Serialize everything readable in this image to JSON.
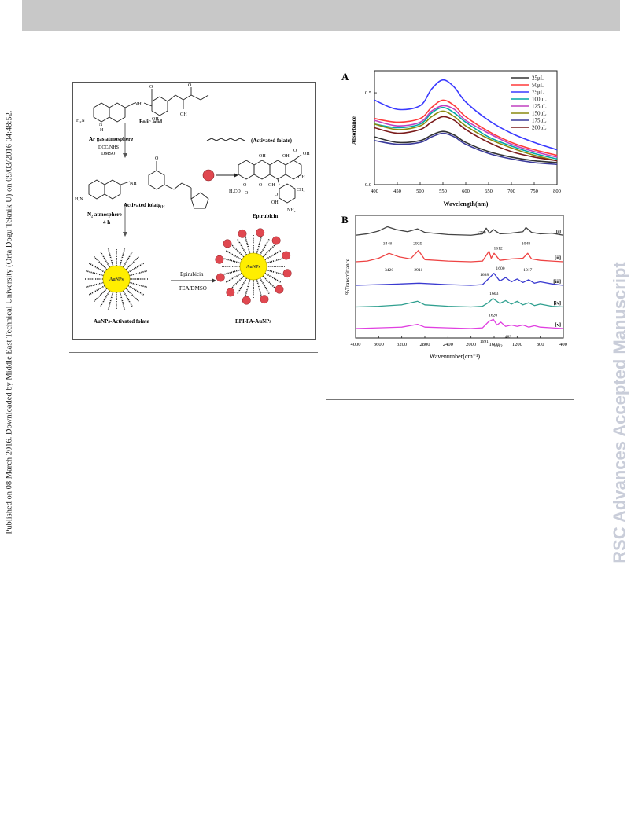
{
  "sidebar_left_text": "Published on 08 March 2016. Downloaded by Middle East Technical University (Orta Dogu Teknik U) on 09/03/2016 04:48:52.",
  "sidebar_right_text": "RSC Advances Accepted Manuscript",
  "scheme": {
    "folic_acid": "Folic acid",
    "ar_atmosphere": "Ar gas atmosphere",
    "dcc_nhs": "DCC/NHS",
    "dmso": "DMSO",
    "activated_folate": "Activated folate",
    "legend_activated": "(Activated folate)",
    "epirubicin_label": "Epirubicin",
    "n2_atmosphere": "N₂ atmosphere",
    "four_h": "4 h",
    "aunps": "AuNPs",
    "arrow_top": "Epirubicin",
    "arrow_bottom": "TEA/DMSO",
    "aunps_activated_folate": "AuNPs-Activated folate",
    "epi_fa_aunps": "EPI-FA-AuNPs",
    "atom_labels": [
      "H₂N",
      "N",
      "H",
      "NH",
      "O",
      "OH",
      "OH",
      "O",
      "NH",
      "O",
      "OH",
      "H₂N",
      "OH",
      "O",
      "O",
      "OH",
      "OH",
      "O",
      "OH",
      "H₃CO",
      "O",
      "OH",
      "O",
      "CH₃",
      "OH",
      "NH₂"
    ]
  },
  "chart_data": [
    {
      "panel_label": "A",
      "type": "line",
      "xlabel": "Wavelength(nm)",
      "ylabel": "Absorbance",
      "xlim": [
        400,
        800
      ],
      "ylim": [
        0.0,
        0.62
      ],
      "xticks": [
        400,
        450,
        500,
        550,
        600,
        650,
        700,
        750,
        800
      ],
      "yticks": [
        0.0,
        0.5
      ],
      "legend": "top-right",
      "series": [
        {
          "name": "25μL",
          "color": "#333333",
          "x": [
            400,
            450,
            500,
            525,
            550,
            575,
            600,
            650,
            700,
            750,
            800
          ],
          "y": [
            0.26,
            0.23,
            0.24,
            0.27,
            0.29,
            0.27,
            0.23,
            0.18,
            0.15,
            0.13,
            0.12
          ]
        },
        {
          "name": "50μL",
          "color": "#ff3a3a",
          "x": [
            400,
            450,
            500,
            525,
            550,
            575,
            600,
            650,
            700,
            750,
            800
          ],
          "y": [
            0.36,
            0.34,
            0.36,
            0.42,
            0.46,
            0.43,
            0.37,
            0.29,
            0.23,
            0.19,
            0.16
          ]
        },
        {
          "name": "75μL",
          "color": "#3a3aff",
          "x": [
            400,
            450,
            500,
            525,
            550,
            575,
            600,
            650,
            700,
            750,
            800
          ],
          "y": [
            0.46,
            0.41,
            0.43,
            0.52,
            0.57,
            0.53,
            0.45,
            0.35,
            0.28,
            0.23,
            0.19
          ]
        },
        {
          "name": "100μL",
          "color": "#00a7a7",
          "x": [
            400,
            450,
            500,
            525,
            550,
            575,
            600,
            650,
            700,
            750,
            800
          ],
          "y": [
            0.33,
            0.31,
            0.33,
            0.39,
            0.42,
            0.39,
            0.34,
            0.26,
            0.21,
            0.17,
            0.14
          ]
        },
        {
          "name": "125μL",
          "color": "#c040c0",
          "x": [
            400,
            450,
            500,
            525,
            550,
            575,
            600,
            650,
            700,
            750,
            800
          ],
          "y": [
            0.35,
            0.32,
            0.34,
            0.4,
            0.43,
            0.41,
            0.35,
            0.28,
            0.22,
            0.18,
            0.15
          ]
        },
        {
          "name": "150μL",
          "color": "#8a8a10",
          "x": [
            400,
            450,
            500,
            525,
            550,
            575,
            600,
            650,
            700,
            750,
            800
          ],
          "y": [
            0.33,
            0.3,
            0.32,
            0.37,
            0.4,
            0.37,
            0.32,
            0.25,
            0.2,
            0.16,
            0.13
          ]
        },
        {
          "name": "175μL",
          "color": "#3a3a9a",
          "x": [
            400,
            450,
            500,
            525,
            550,
            575,
            600,
            650,
            700,
            750,
            800
          ],
          "y": [
            0.24,
            0.22,
            0.23,
            0.26,
            0.28,
            0.26,
            0.22,
            0.17,
            0.14,
            0.12,
            0.11
          ]
        },
        {
          "name": "200μL",
          "color": "#7a1a1a",
          "x": [
            400,
            450,
            500,
            525,
            550,
            575,
            600,
            650,
            700,
            750,
            800
          ],
          "y": [
            0.31,
            0.28,
            0.3,
            0.34,
            0.37,
            0.35,
            0.3,
            0.23,
            0.18,
            0.15,
            0.13
          ]
        }
      ]
    },
    {
      "panel_label": "B",
      "type": "line",
      "xlabel": "Wavenumber(cm⁻¹)",
      "ylabel": "%Transmittance",
      "xlim": [
        4000,
        400
      ],
      "xticks": [
        4000,
        3600,
        3200,
        2800,
        2400,
        2000,
        1600,
        1200,
        800,
        400
      ],
      "series": [
        {
          "name": "[i]",
          "color": "#444444",
          "offset": 95,
          "x": [
            4000,
            3800,
            3600,
            3448,
            3300,
            3100,
            2925,
            2800,
            2400,
            2000,
            1800,
            1736,
            1680,
            1612,
            1500,
            1300,
            1100,
            1048,
            950,
            800,
            600,
            400
          ],
          "y": [
            0,
            -2,
            -6,
            -12,
            -8,
            -5,
            -9,
            -4,
            -1,
            0,
            -2,
            -10,
            -3,
            -8,
            -2,
            -3,
            -5,
            -11,
            -4,
            -2,
            -3,
            0
          ]
        },
        {
          "name": "[ii]",
          "color": "#ee4444",
          "offset": 68,
          "x": [
            4000,
            3800,
            3600,
            3420,
            3250,
            3050,
            2911,
            2800,
            2400,
            2000,
            1800,
            1688,
            1650,
            1600,
            1500,
            1300,
            1100,
            1017,
            950,
            800,
            600,
            400
          ],
          "y": [
            0,
            -1,
            -5,
            -12,
            -7,
            -4,
            -16,
            -3,
            -1,
            0,
            -1,
            -15,
            -5,
            -12,
            -2,
            -4,
            -5,
            -12,
            -4,
            -2,
            -1,
            0
          ]
        },
        {
          "name": "[iii]",
          "color": "#3a3ad0",
          "offset": 44,
          "x": [
            4000,
            3600,
            3200,
            2900,
            2400,
            2000,
            1800,
            1700,
            1603,
            1500,
            1400,
            1300,
            1200,
            1100,
            1000,
            900,
            800,
            600,
            400
          ],
          "y": [
            0,
            -1,
            -2,
            -3,
            -1,
            0,
            -1,
            -9,
            -17,
            -6,
            -11,
            -5,
            -9,
            -4,
            -8,
            -3,
            -5,
            -2,
            0
          ]
        },
        {
          "name": "[iv]",
          "color": "#30a090",
          "offset": 22,
          "x": [
            4000,
            3600,
            3200,
            2925,
            2800,
            2400,
            2000,
            1800,
            1700,
            1620,
            1500,
            1400,
            1300,
            1200,
            1100,
            1000,
            900,
            800,
            600,
            400
          ],
          "y": [
            0,
            -1,
            -3,
            -8,
            -3,
            -1,
            0,
            -1,
            -6,
            -12,
            -5,
            -9,
            -4,
            -8,
            -3,
            -6,
            -2,
            -4,
            -1,
            0
          ]
        },
        {
          "name": "[v]",
          "color": "#e040e0",
          "offset": 0,
          "x": [
            4000,
            3600,
            3200,
            2925,
            2800,
            2400,
            2000,
            1800,
            1691,
            1612,
            1550,
            1483,
            1400,
            1300,
            1200,
            1100,
            1000,
            900,
            800,
            600,
            400
          ],
          "y": [
            0,
            -1,
            -2,
            -6,
            -2,
            -1,
            0,
            -1,
            -10,
            -13,
            -5,
            -9,
            -3,
            -5,
            -3,
            -5,
            -2,
            -4,
            -2,
            -1,
            0
          ]
        }
      ],
      "annotations": [
        "3448",
        "2925",
        "1736",
        "1612",
        "1048",
        "3420",
        "2911",
        "1688",
        "1600",
        "1017",
        "1603",
        "1620",
        "1691",
        "1612",
        "1483"
      ]
    }
  ]
}
